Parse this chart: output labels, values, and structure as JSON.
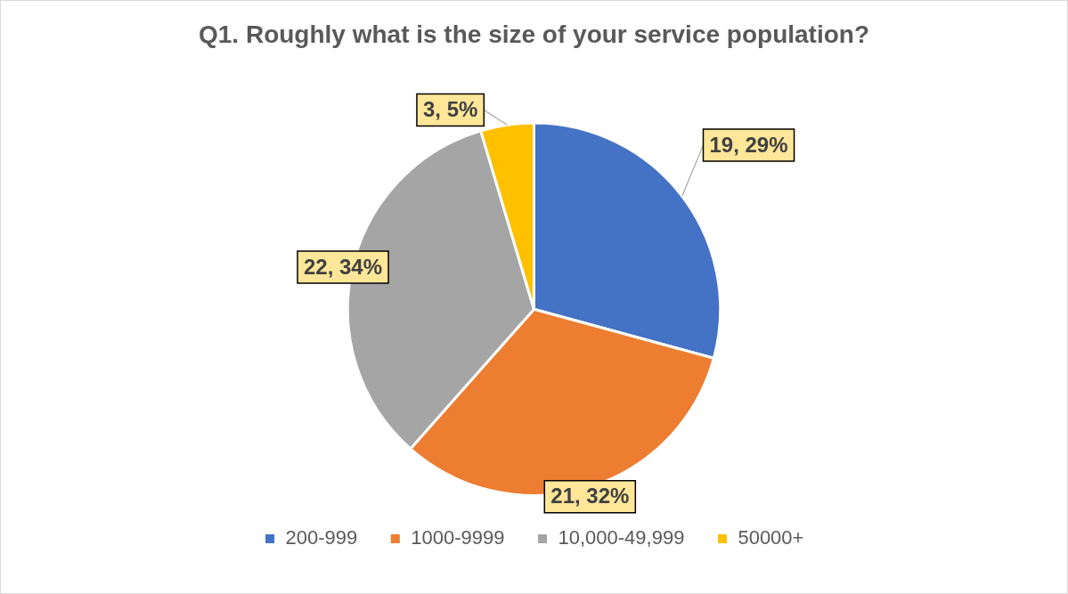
{
  "chart_data": {
    "type": "pie",
    "title": "Q1. Roughly what is the size of your service population?",
    "categories": [
      "200-999",
      "1000-9999",
      "10,000-49,999",
      "50000+"
    ],
    "values": [
      19,
      21,
      22,
      3
    ],
    "colors": [
      "#4472c4",
      "#ed7d31",
      "#a5a5a5",
      "#ffc000"
    ],
    "value_labels": [
      "19, 29%",
      "21, 32%",
      "22, 34%",
      "3, 5%"
    ],
    "legend": "bottom"
  }
}
